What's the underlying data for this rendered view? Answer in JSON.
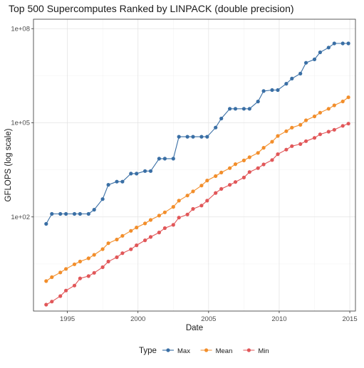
{
  "chart_data": {
    "type": "line",
    "title": "Top 500 Supercomputes Ranked by LINPACK (double precision)",
    "xlabel": "Date",
    "ylabel": "GFLOPS (log scale)",
    "y_scale": "log10",
    "xlim": [
      1992.6,
      2015.4
    ],
    "ylim": [
      0.1,
      200000000.0
    ],
    "x_ticks": [
      1995,
      2000,
      2005,
      2010,
      2015
    ],
    "x_tick_labels": [
      "1995",
      "2000",
      "2005",
      "2010",
      "2015"
    ],
    "y_ticks": [
      100,
      100000,
      100000000
    ],
    "y_tick_labels": [
      "1e+02",
      "1e+05",
      "1e+08"
    ],
    "grid": true,
    "legend": {
      "title": "Type",
      "position": "bottom"
    },
    "x": [
      1993.5,
      1993.9,
      1994.5,
      1994.9,
      1995.5,
      1995.9,
      1996.5,
      1996.9,
      1997.5,
      1997.9,
      1998.5,
      1998.9,
      1999.5,
      1999.9,
      2000.5,
      2000.9,
      2001.5,
      2001.9,
      2002.5,
      2002.9,
      2003.5,
      2003.9,
      2004.5,
      2004.9,
      2005.5,
      2005.9,
      2006.5,
      2006.9,
      2007.5,
      2007.9,
      2008.5,
      2008.9,
      2009.5,
      2009.9,
      2010.5,
      2010.9,
      2011.5,
      2011.9,
      2012.5,
      2012.9,
      2013.5,
      2013.9,
      2014.5,
      2014.9
    ],
    "series": [
      {
        "name": "Max",
        "color": "#3a6fa5",
        "values": [
          60,
          125,
          125,
          125,
          125,
          125,
          125,
          170,
          370,
          1060,
          1330,
          1330,
          2400,
          2400,
          2900,
          2900,
          7200,
          7200,
          7200,
          35900,
          35900,
          35900,
          35900,
          35900,
          70700,
          136800,
          280600,
          280600,
          280600,
          280600,
          478200,
          1026000,
          1105000,
          1105000,
          1759000,
          2566000,
          3700000,
          8162000,
          10510000,
          17590000,
          25000000,
          33860000,
          33860000,
          33860000
        ]
      },
      {
        "name": "Mean",
        "color": "#f28e2b",
        "values": [
          0.9,
          1.2,
          1.7,
          2.2,
          3.1,
          3.8,
          4.8,
          6.2,
          9.4,
          14.5,
          19,
          25,
          36,
          46,
          62,
          80,
          110,
          140,
          210,
          330,
          480,
          650,
          1000,
          1450,
          2000,
          2600,
          3600,
          4800,
          6300,
          8000,
          11000,
          16000,
          25000,
          38000,
          54000,
          70000,
          86000,
          120000,
          160000,
          210000,
          280000,
          360000,
          480000,
          650000
        ]
      },
      {
        "name": "Min",
        "color": "#e15759",
        "values": [
          0.16,
          0.2,
          0.3,
          0.45,
          0.65,
          1.1,
          1.3,
          1.65,
          2.5,
          3.8,
          5.2,
          7,
          9.3,
          12.5,
          18,
          23,
          32,
          44,
          56,
          95,
          120,
          180,
          230,
          330,
          580,
          780,
          1050,
          1300,
          1800,
          2700,
          3600,
          4700,
          6500,
          10000,
          14000,
          18000,
          21000,
          26000,
          33000,
          43000,
          52000,
          60000,
          80000,
          94000
        ]
      }
    ]
  }
}
